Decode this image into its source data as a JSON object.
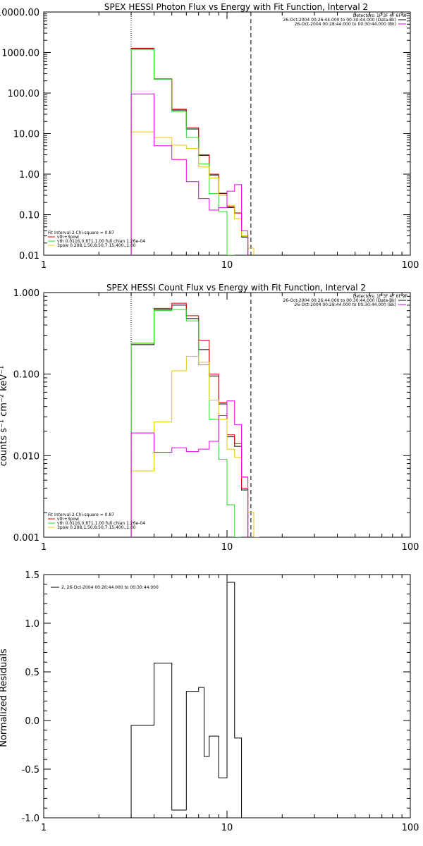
{
  "chart_data": [
    {
      "type": "line",
      "step": true,
      "title": "SPEX HESSI Photon Flux vs Energy with Fit Function, Interval 2",
      "xscale": "log",
      "yscale": "log",
      "xlim": [
        1,
        100
      ],
      "ylim": [
        0.01,
        10000
      ],
      "xticks": [
        1,
        10,
        100
      ],
      "xtick_labels": [
        "1",
        "10",
        "100"
      ],
      "yticks": [
        0.01,
        0.1,
        1,
        10,
        100,
        1000,
        10000
      ],
      "ytick_labels": [
        "0.01",
        "0.10",
        "1.00",
        "10.00",
        "100.00",
        "1000.00",
        "10000.00"
      ],
      "vlines": [
        {
          "x": 3,
          "style": "dotted"
        },
        {
          "x": 13.5,
          "style": "dashed"
        }
      ],
      "edges": [
        3,
        4,
        5,
        6,
        7,
        8,
        9,
        10,
        11,
        12,
        13,
        14,
        15
      ],
      "series": [
        {
          "name": "",
          "color": "#000000",
          "values": [
            1250,
            220,
            38,
            13,
            2.9,
            0.95,
            0.33,
            0.15,
            0.11,
            0.028
          ]
        },
        {
          "name": "vth+3pow",
          "color": "#e60000",
          "values": [
            1280,
            225,
            40,
            14,
            3.0,
            1.0,
            0.34,
            0.16,
            0.11,
            0.03
          ]
        },
        {
          "name": "vth 0.0116,0.871,1.00  full chian 1.26e-04",
          "color": "#22dd22",
          "values": [
            1200,
            220,
            35,
            8,
            1.8,
            0.33,
            0.12,
            0.005
          ]
        },
        {
          "name": "3pow 0.208,1.50,8.50,7.15,400.,1.00",
          "color": "#e6c800",
          "values": [
            11,
            8,
            5.2,
            4.3,
            1.5,
            0.8,
            0.3,
            0.17,
            0.08,
            0.03,
            0.015
          ]
        },
        {
          "name": "26-Oct-2004 00:28:44.000 to 00:30:44.000 (Bk)",
          "color": "#e600e6",
          "values": [
            95,
            5,
            2.3,
            0.65,
            0.25,
            0.13,
            0.15,
            0.38,
            0.55,
            0.04
          ]
        }
      ],
      "legend_header": "Detectors: 1F 3F 4F 6F 9F",
      "legend_entries": [
        {
          "text": "26-Oct-2004 00:26:44.000 to 00:30:44.000 (Data-Bk)",
          "color": "#000000"
        },
        {
          "text": "26-Oct-2004 00:28:44.000 to 00:30:44.000 (Bk)",
          "color": "#e600e6"
        }
      ],
      "fit_text": "Fit Interval 2   Chi-square = 0.87",
      "fit_entries": [
        {
          "text": "vth+3pow",
          "color": "#e60000"
        },
        {
          "text": "vth 0.0116,0.871,1.00  full chian 1.26e-04",
          "color": "#22dd22"
        },
        {
          "text": "3pow 0.208,1.50,8.50,7.15,400.,1.00",
          "color": "#e6c800"
        }
      ]
    },
    {
      "type": "line",
      "step": true,
      "title": "SPEX HESSI Count Flux vs Energy with Fit Function, Interval 2",
      "ylabel": "counts s⁻¹ cm⁻² keV⁻¹",
      "xscale": "log",
      "yscale": "log",
      "xlim": [
        1,
        100
      ],
      "ylim": [
        0.001,
        1.0
      ],
      "xticks": [
        1,
        10,
        100
      ],
      "xtick_labels": [
        "1",
        "10",
        "100"
      ],
      "yticks": [
        0.001,
        0.01,
        0.1,
        1.0
      ],
      "ytick_labels": [
        "0.001",
        "0.010",
        "0.100",
        "1.000"
      ],
      "vlines": [
        {
          "x": 3,
          "style": "dotted"
        },
        {
          "x": 13.5,
          "style": "dashed"
        }
      ],
      "edges": [
        3,
        4,
        5,
        6,
        7,
        8,
        9,
        10,
        11,
        12,
        13,
        14,
        15,
        16
      ],
      "series": [
        {
          "name": "",
          "color": "#000000",
          "values": [
            0.23,
            0.62,
            0.7,
            0.48,
            0.2,
            0.095,
            0.043,
            0.017,
            0.013,
            0.0038
          ]
        },
        {
          "name": "vth+3pow",
          "color": "#e60000",
          "values": [
            0.24,
            0.64,
            0.74,
            0.52,
            0.26,
            0.1,
            0.045,
            0.018,
            0.014,
            0.004
          ]
        },
        {
          "name": "vth 0.0116,0.871,1.00  full chian 1.26e-04",
          "color": "#22dd22",
          "values": [
            0.24,
            0.6,
            0.62,
            0.45,
            0.13,
            0.028,
            0.009,
            0.0025,
            0.0009
          ]
        },
        {
          "name": "3pow 0.208,1.50,8.50,7.15,400.,1.00",
          "color": "#e6c800",
          "values": [
            0.0065,
            0.026,
            0.11,
            0.165,
            0.14,
            0.048,
            0.028,
            0.012,
            0.0095,
            0.0054,
            0.002,
            0.0009
          ]
        },
        {
          "name": "26-Oct-2004 00:28:44.000 to 00:30:44.000 (Bk)",
          "color": "#e600e6",
          "values": [
            0.019,
            0.011,
            0.0125,
            0.0112,
            0.012,
            0.015,
            0.031,
            0.047,
            0.024,
            0.0055
          ]
        }
      ],
      "legend_header": "Detectors: 1F 3F 4F 6F 9F",
      "legend_entries": [
        {
          "text": "26-Oct-2004 00:26:44.000 to 00:30:44.000 (Data-Bk)",
          "color": "#000000"
        },
        {
          "text": "26-Oct-2004 00:28:44.000 to 00:30:44.000 (Bk)",
          "color": "#e600e6"
        }
      ],
      "fit_text": "Fit Interval 2   Chi-square = 0.87",
      "fit_entries": [
        {
          "text": "vth+3pow",
          "color": "#e60000"
        },
        {
          "text": "vth 0.0116,0.871,1.00  full chian 1.26e-04",
          "color": "#22dd22"
        },
        {
          "text": "3pow 0.208,1.50,8.50,7.15,400.,1.00",
          "color": "#e6c800"
        }
      ]
    },
    {
      "type": "line",
      "step": true,
      "title": "",
      "ylabel": "Normalized Residuals",
      "xscale": "log",
      "yscale": "linear",
      "xlim": [
        1,
        100
      ],
      "ylim": [
        -1.0,
        1.5
      ],
      "xticks": [
        1,
        10,
        100
      ],
      "xtick_labels": [
        "1",
        "10",
        "100"
      ],
      "yticks": [
        -1.0,
        -0.5,
        0.0,
        0.5,
        1.0,
        1.5
      ],
      "ytick_labels": [
        "-1.0",
        "-0.5",
        "0.0",
        "0.5",
        "1.0",
        "1.5"
      ],
      "edges": [
        3,
        4,
        5,
        6,
        7,
        7.5,
        8,
        9,
        10,
        11,
        12,
        13
      ],
      "series": [
        {
          "name": "2, 26-Oct-2004 00:26:44.000 to 00:30:44.000",
          "color": "#000000",
          "values": [
            -0.05,
            0.59,
            -0.92,
            0.3,
            0.34,
            -0.37,
            -0.16,
            -0.59,
            1.42,
            -0.18
          ]
        }
      ],
      "legend_entries": [
        {
          "text": "2, 26-Oct-2004 00:26:44.000 to 00:30:44.000",
          "color": "#000000"
        }
      ]
    }
  ]
}
